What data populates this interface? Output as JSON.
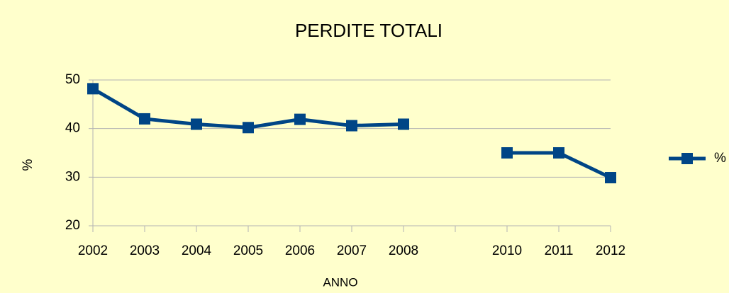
{
  "chart_data": {
    "type": "line",
    "title": "PERDITE TOTALI",
    "x_label": "ANNO",
    "y_label": "%",
    "categories": [
      "2002",
      "2003",
      "2004",
      "2005",
      "2006",
      "2007",
      "2008",
      null,
      "2010",
      "2011",
      "2012"
    ],
    "series": [
      {
        "name": "%",
        "color": "#004586",
        "values": [
          48.2,
          42,
          40.9,
          40.2,
          41.9,
          40.6,
          40.9,
          null,
          35,
          35,
          29.9
        ]
      }
    ],
    "ylim": [
      20,
      50
    ],
    "yticks": [
      20,
      30,
      40,
      50
    ],
    "grid": true,
    "legend": "right"
  }
}
